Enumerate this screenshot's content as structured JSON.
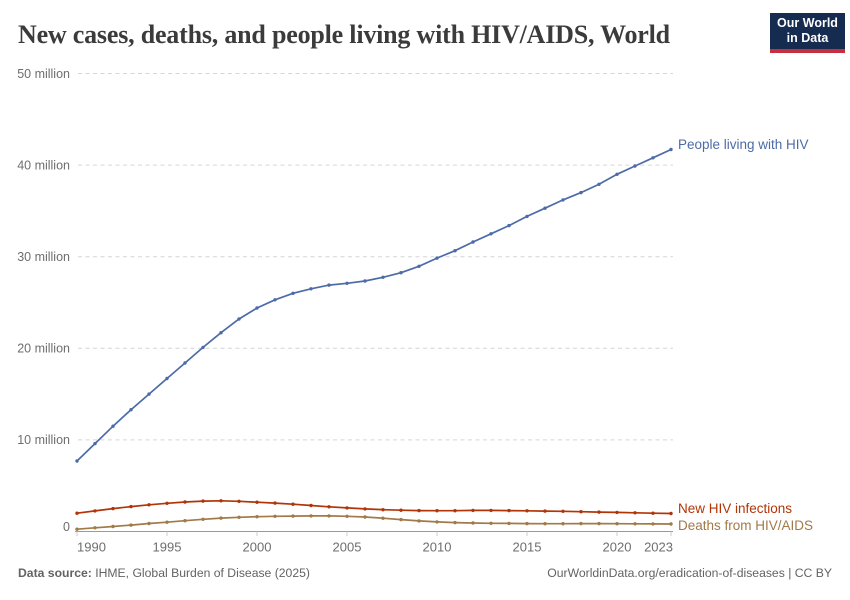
{
  "header": {
    "title": "New cases, deaths, and people living with HIV/AIDS, World",
    "logo": {
      "line1": "Our World",
      "line2": "in Data"
    }
  },
  "chart_data": {
    "type": "line",
    "title": "New cases, deaths, and people living with HIV/AIDS, World",
    "unit": "million people",
    "x": [
      1990,
      1991,
      1992,
      1993,
      1994,
      1995,
      1996,
      1997,
      1998,
      1999,
      2000,
      2001,
      2002,
      2003,
      2004,
      2005,
      2006,
      2007,
      2008,
      2009,
      2010,
      2011,
      2012,
      2013,
      2014,
      2015,
      2016,
      2017,
      2018,
      2019,
      2020,
      2021,
      2022,
      2023
    ],
    "series": [
      {
        "name": "People living with HIV",
        "color": "#4C6BA8",
        "values": [
          7.7,
          9.6,
          11.5,
          13.3,
          15.0,
          16.7,
          18.4,
          20.1,
          21.7,
          23.2,
          24.4,
          25.3,
          26.0,
          26.5,
          26.9,
          27.1,
          27.35,
          27.75,
          28.25,
          28.95,
          29.85,
          30.65,
          31.6,
          32.5,
          33.4,
          34.4,
          35.3,
          36.2,
          37.0,
          37.9,
          39.0,
          39.9,
          40.8,
          41.7
        ]
      },
      {
        "name": "New HIV infections",
        "color": "#B13507",
        "values": [
          2.0,
          2.25,
          2.5,
          2.72,
          2.92,
          3.08,
          3.22,
          3.32,
          3.35,
          3.3,
          3.2,
          3.1,
          2.98,
          2.84,
          2.7,
          2.58,
          2.47,
          2.38,
          2.32,
          2.28,
          2.27,
          2.27,
          2.3,
          2.3,
          2.28,
          2.26,
          2.23,
          2.2,
          2.16,
          2.12,
          2.08,
          2.04,
          2.0,
          1.97
        ]
      },
      {
        "name": "Deaths from HIV/AIDS",
        "color": "#A07A48",
        "values": [
          0.25,
          0.4,
          0.55,
          0.7,
          0.87,
          1.02,
          1.18,
          1.33,
          1.46,
          1.55,
          1.62,
          1.66,
          1.68,
          1.7,
          1.7,
          1.66,
          1.58,
          1.45,
          1.3,
          1.16,
          1.05,
          0.97,
          0.93,
          0.9,
          0.88,
          0.86,
          0.85,
          0.85,
          0.86,
          0.86,
          0.85,
          0.84,
          0.83,
          0.82
        ]
      }
    ],
    "y_ticks": [
      {
        "value": 0,
        "label": "0"
      },
      {
        "value": 10,
        "label": "10 million"
      },
      {
        "value": 20,
        "label": "20 million"
      },
      {
        "value": 30,
        "label": "30 million"
      },
      {
        "value": 40,
        "label": "40 million"
      },
      {
        "value": 50,
        "label": "50 million"
      }
    ],
    "x_ticks": [
      1990,
      1995,
      2000,
      2005,
      2010,
      2015,
      2020,
      2023
    ],
    "ylim": [
      0,
      50
    ],
    "xlim": [
      1990,
      2023
    ],
    "grid": "dashed-horizontal",
    "legend_position": "end-of-line-labels"
  },
  "footer": {
    "source_label": "Data source:",
    "source_text": " IHME, Global Burden of Disease (2025)",
    "credit": "OurWorldinData.org/eradication-of-diseases | CC BY"
  },
  "colors": {
    "grid": "#d6d6d6",
    "axis": "#999999",
    "tick": "#cccccc",
    "tick_text": "#6e6e6e",
    "title_text": "#3b3b3b",
    "footer_text": "#636363",
    "logo_bg": "#152B4F",
    "logo_bar": "#C5303E"
  }
}
